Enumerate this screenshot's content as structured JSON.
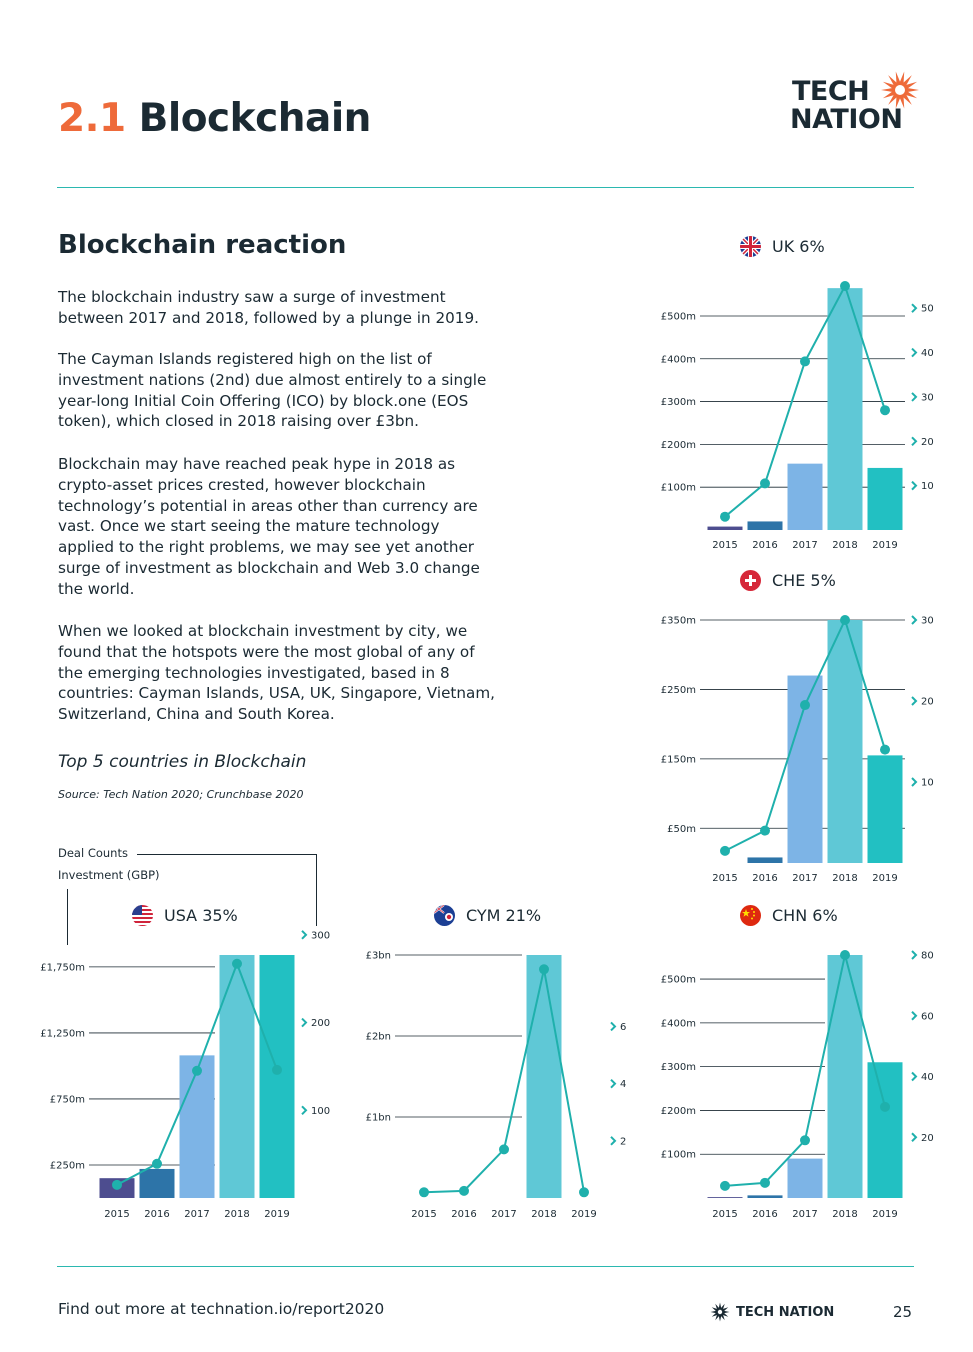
{
  "header": {
    "section_number": "2.1",
    "section_title": "Blockchain",
    "logo_line1": "TECH",
    "logo_line2": "NATION"
  },
  "subtitle": "Blockchain reaction",
  "paragraphs": [
    "The blockchain industry saw a surge of investment between 2017 and 2018, followed by a plunge in 2019.",
    "The Cayman Islands registered high on the list of investment nations (2nd) due almost entirely to a single year-long Initial Coin Offering (ICO) by block.one (EOS token), which closed in 2018 raising over £3bn.",
    "Blockchain may have reached peak hype in 2018 as crypto-asset prices crested, however blockchain technology’s potential in areas other than currency are vast. Once we start seeing the mature technology applied to the right problems, we may see yet another surge of investment as blockchain and Web 3.0 change the world.",
    "When we looked at blockchain investment by city, we found that the hotspots were the most global of any of the emerging technologies investigated, based in 8 countries: Cayman Islands, USA, UK, Singapore, Vietnam, Switzerland, China and South Korea."
  ],
  "chart_title": "Top 5 countries in Blockchain",
  "source": "Source: Tech Nation 2020; Crunchbase 2020",
  "legend": {
    "deals": "Deal Counts",
    "investment": "Investment (GBP)"
  },
  "colors": {
    "accent": "#ee6a3a",
    "line": "#1fb0ac",
    "teal_rule": "#2bb8b0",
    "bars": [
      "#4d4d8f",
      "#2d74a8",
      "#7db4e6",
      "#5fc8d6",
      "#22c0c2"
    ]
  },
  "footer": {
    "text": "Find out more at technation.io/report2020",
    "logo": "TECH NATION",
    "page": "25"
  },
  "chart_data": [
    {
      "id": "uk",
      "type": "bar",
      "country": "UK 6%",
      "flag": "uk-flag",
      "categories": [
        "2015",
        "2016",
        "2017",
        "2018",
        "2019"
      ],
      "series": [
        {
          "values": [
            8,
            20,
            155,
            565,
            145
          ]
        },
        {
          "values": [
            3,
            10.5,
            38,
            55,
            27
          ]
        }
      ],
      "left_ticks": [
        {
          "v": 500,
          "label": "£500m"
        },
        {
          "v": 400,
          "label": "£400m"
        },
        {
          "v": 300,
          "label": "£300m"
        },
        {
          "v": 200,
          "label": "£200m"
        },
        {
          "v": 100,
          "label": "£100m"
        }
      ],
      "right_ticks": [
        50,
        40,
        30,
        20,
        10
      ],
      "ylim": [
        0,
        570
      ],
      "y2lim": [
        0,
        55
      ]
    },
    {
      "id": "che",
      "type": "bar",
      "country": "CHE 5%",
      "flag": "che-flag",
      "categories": [
        "2015",
        "2016",
        "2017",
        "2018",
        "2019"
      ],
      "series": [
        {
          "values": [
            0,
            8,
            270,
            350,
            155
          ]
        },
        {
          "values": [
            1.5,
            4,
            19.5,
            30,
            14
          ]
        }
      ],
      "left_ticks": [
        {
          "v": 350,
          "label": "£350m"
        },
        {
          "v": 250,
          "label": "£250m"
        },
        {
          "v": 150,
          "label": "£150m"
        },
        {
          "v": 50,
          "label": "£50m"
        }
      ],
      "right_ticks": [
        30,
        20,
        10
      ],
      "ylim": [
        0,
        350
      ],
      "y2lim": [
        0,
        30
      ]
    },
    {
      "id": "usa",
      "type": "bar",
      "country": "USA 35%",
      "flag": "usa-flag",
      "categories": [
        "2015",
        "2016",
        "2017",
        "2018",
        "2019"
      ],
      "series": [
        {
          "values": [
            150,
            220,
            1080,
            1840,
            1840
          ]
        },
        {
          "values": [
            15,
            39,
            145,
            267,
            146
          ]
        }
      ],
      "left_ticks": [
        {
          "v": 1750,
          "label": "£1,750m"
        },
        {
          "v": 1250,
          "label": "£1,250m"
        },
        {
          "v": 750,
          "label": "£750m"
        },
        {
          "v": 250,
          "label": "£250m"
        }
      ],
      "right_ticks": [
        300,
        200,
        100
      ],
      "ylim": [
        0,
        1840
      ],
      "y2lim": [
        0,
        277
      ]
    },
    {
      "id": "cym",
      "type": "bar",
      "country": "CYM 21%",
      "flag": "cym-flag",
      "categories": [
        "2015",
        "2016",
        "2017",
        "2018",
        "2019"
      ],
      "series": [
        {
          "values": [
            0,
            0,
            0,
            3000,
            0
          ]
        },
        {
          "values": [
            0.2,
            0.25,
            1.7,
            8,
            0.2
          ]
        }
      ],
      "left_ticks": [
        {
          "v": 3000,
          "label": "£3bn"
        },
        {
          "v": 2000,
          "label": "£2bn"
        },
        {
          "v": 1000,
          "label": "£1bn"
        }
      ],
      "right_ticks": [
        6,
        4,
        2
      ],
      "ylim": [
        0,
        3000
      ],
      "y2lim": [
        0,
        8.5
      ]
    },
    {
      "id": "chn",
      "type": "bar",
      "country": "CHN 6%",
      "flag": "chn-flag",
      "categories": [
        "2015",
        "2016",
        "2017",
        "2018",
        "2019"
      ],
      "series": [
        {
          "values": [
            2,
            6,
            90,
            555,
            310
          ]
        },
        {
          "values": [
            4,
            5,
            19,
            80,
            30
          ]
        }
      ],
      "left_ticks": [
        {
          "v": 500,
          "label": "£500m"
        },
        {
          "v": 400,
          "label": "£400m"
        },
        {
          "v": 300,
          "label": "£300m"
        },
        {
          "v": 200,
          "label": "£200m"
        },
        {
          "v": 100,
          "label": "£100m"
        }
      ],
      "right_ticks": [
        80,
        60,
        40,
        20
      ],
      "ylim": [
        0,
        555
      ],
      "y2lim": [
        0,
        80
      ]
    }
  ]
}
